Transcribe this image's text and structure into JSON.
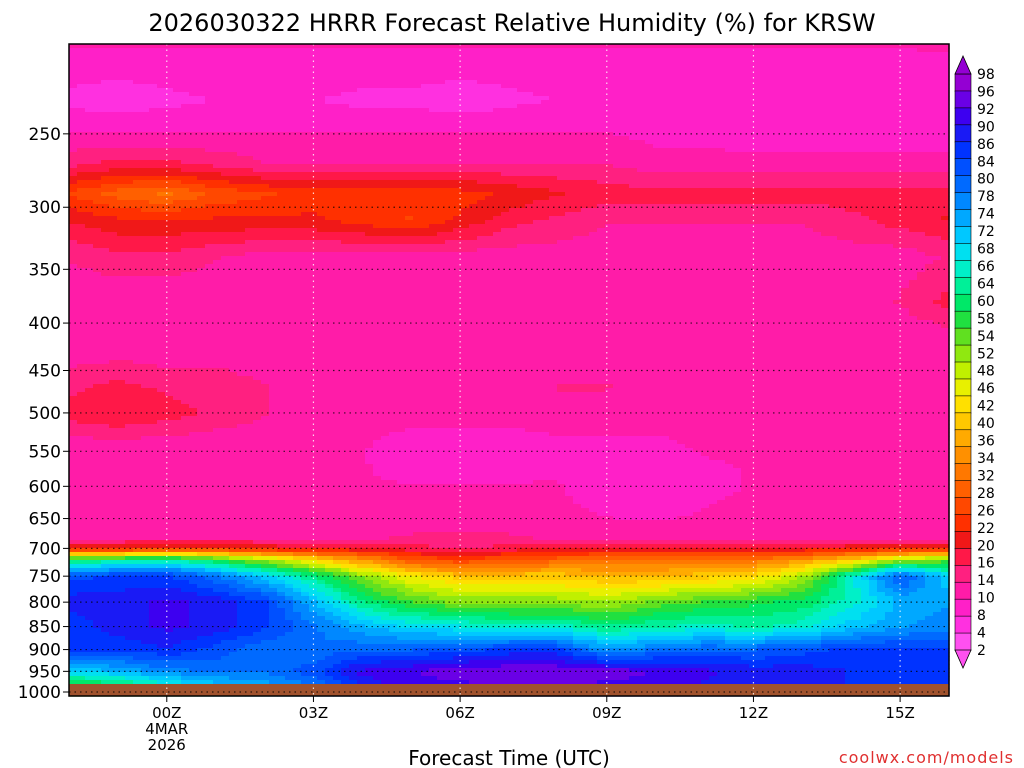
{
  "chart_data": {
    "type": "heatmap",
    "title": "2026030322 HRRR Forecast Relative Humidity (%) for KRSW",
    "xlabel": "Forecast Time (UTC)",
    "ylabel": "",
    "credit": "coolwx.com/models",
    "x_axis": {
      "range_hours": [
        -2.0,
        16.0
      ],
      "ticks": [
        {
          "hour": 0,
          "label": "00Z",
          "sub1": "4MAR",
          "sub2": "2026"
        },
        {
          "hour": 3,
          "label": "03Z"
        },
        {
          "hour": 6,
          "label": "06Z"
        },
        {
          "hour": 9,
          "label": "09Z"
        },
        {
          "hour": 12,
          "label": "12Z"
        },
        {
          "hour": 15,
          "label": "15Z"
        }
      ]
    },
    "y_axis": {
      "scale": "log-pressure",
      "range": [
        1010,
        200
      ],
      "ticks": [
        250,
        300,
        350,
        400,
        450,
        500,
        550,
        600,
        650,
        700,
        750,
        800,
        850,
        900,
        950,
        1000
      ]
    },
    "colorbar": {
      "labels": [
        "98",
        "96",
        "92",
        "90",
        "86",
        "84",
        "80",
        "78",
        "74",
        "72",
        "68",
        "66",
        "64",
        "60",
        "58",
        "54",
        "52",
        "48",
        "46",
        "42",
        "40",
        "36",
        "34",
        "32",
        "28",
        "26",
        "22",
        "20",
        "16",
        "14",
        "10",
        "8",
        "4",
        "2"
      ],
      "colors": [
        "#9400d3",
        "#6a00e6",
        "#3d00f0",
        "#1a1af5",
        "#0033ff",
        "#0050ff",
        "#006aff",
        "#0088ff",
        "#00a8ff",
        "#00c8ff",
        "#00e0f0",
        "#00f0c8",
        "#00f098",
        "#00e868",
        "#20e040",
        "#60e020",
        "#90e810",
        "#c0f000",
        "#e8f000",
        "#ffe000",
        "#ffc800",
        "#ffaa00",
        "#ff9000",
        "#ff7800",
        "#ff6000",
        "#ff4800",
        "#ff3000",
        "#f01818",
        "#ff1848",
        "#ff2080",
        "#ff1ca8",
        "#ff20c8",
        "#ff30e0",
        "#ff50f0"
      ]
    },
    "surface_color": "#a0522d",
    "profiles": {
      "hours": [
        -2,
        -1,
        0,
        1,
        2,
        3,
        4,
        5,
        6,
        7,
        8,
        9,
        10,
        11,
        12,
        13,
        14,
        15,
        16
      ],
      "levels_hpa": [
        {
          "p": 1000,
          "rh": [
            50,
            52,
            60,
            68,
            72,
            78,
            88,
            92,
            92,
            94,
            94,
            92,
            92,
            90,
            90,
            90,
            88,
            86,
            86
          ]
        },
        {
          "p": 950,
          "rh": [
            70,
            74,
            78,
            80,
            80,
            84,
            92,
            94,
            96,
            97,
            97,
            96,
            94,
            92,
            90,
            90,
            88,
            88,
            88
          ]
        },
        {
          "p": 900,
          "rh": [
            86,
            86,
            88,
            84,
            80,
            80,
            82,
            82,
            84,
            86,
            86,
            76,
            80,
            82,
            82,
            84,
            86,
            86,
            86
          ]
        },
        {
          "p": 850,
          "rh": [
            86,
            90,
            92,
            90,
            86,
            80,
            74,
            70,
            68,
            66,
            66,
            62,
            64,
            66,
            64,
            66,
            72,
            76,
            78
          ]
        },
        {
          "p": 800,
          "rh": [
            90,
            90,
            92,
            90,
            86,
            74,
            62,
            56,
            52,
            52,
            52,
            50,
            54,
            56,
            58,
            60,
            66,
            74,
            76
          ]
        },
        {
          "p": 750,
          "rh": [
            84,
            86,
            86,
            80,
            72,
            62,
            52,
            44,
            40,
            40,
            40,
            38,
            38,
            40,
            42,
            50,
            66,
            84,
            70
          ]
        },
        {
          "p": 720,
          "rh": [
            60,
            62,
            64,
            58,
            50,
            42,
            34,
            26,
            24,
            26,
            28,
            30,
            30,
            30,
            30,
            34,
            40,
            50,
            54
          ]
        },
        {
          "p": 700,
          "rh": [
            20,
            20,
            22,
            22,
            20,
            18,
            18,
            16,
            14,
            16,
            18,
            18,
            18,
            18,
            18,
            18,
            20,
            20,
            20
          ]
        },
        {
          "p": 680,
          "rh": [
            10,
            10,
            10,
            10,
            10,
            10,
            10,
            12,
            12,
            12,
            10,
            10,
            10,
            10,
            10,
            10,
            10,
            10,
            10
          ]
        },
        {
          "p": 600,
          "rh": [
            9,
            9,
            9,
            9,
            9,
            9,
            9,
            9,
            9,
            9,
            9,
            7,
            6,
            8,
            9,
            9,
            9,
            9,
            9
          ]
        },
        {
          "p": 550,
          "rh": [
            9,
            9,
            9,
            9,
            9,
            9,
            9,
            7,
            7,
            7,
            8,
            8,
            8,
            9,
            9,
            9,
            9,
            9,
            9
          ]
        },
        {
          "p": 500,
          "rh": [
            16,
            18,
            16,
            14,
            12,
            10,
            10,
            10,
            10,
            10,
            10,
            10,
            10,
            10,
            10,
            10,
            10,
            10,
            10
          ]
        },
        {
          "p": 470,
          "rh": [
            14,
            16,
            14,
            14,
            12,
            10,
            10,
            10,
            10,
            10,
            12,
            12,
            10,
            10,
            10,
            10,
            10,
            10,
            10
          ]
        },
        {
          "p": 420,
          "rh": [
            9,
            9,
            9,
            9,
            9,
            9,
            9,
            9,
            9,
            9,
            9,
            9,
            9,
            9,
            9,
            9,
            9,
            9,
            9
          ]
        },
        {
          "p": 380,
          "rh": [
            9,
            9,
            9,
            9,
            9,
            9,
            9,
            9,
            9,
            9,
            9,
            9,
            9,
            9,
            9,
            9,
            10,
            12,
            16
          ]
        },
        {
          "p": 340,
          "rh": [
            12,
            14,
            14,
            12,
            10,
            10,
            10,
            10,
            10,
            10,
            10,
            10,
            10,
            10,
            10,
            10,
            10,
            10,
            12
          ]
        },
        {
          "p": 310,
          "rh": [
            18,
            20,
            20,
            20,
            20,
            20,
            22,
            24,
            20,
            16,
            14,
            12,
            12,
            12,
            12,
            12,
            14,
            16,
            18
          ]
        },
        {
          "p": 290,
          "rh": [
            24,
            28,
            30,
            26,
            24,
            22,
            22,
            22,
            22,
            20,
            18,
            16,
            16,
            16,
            16,
            16,
            16,
            16,
            16
          ]
        },
        {
          "p": 270,
          "rh": [
            14,
            16,
            16,
            14,
            12,
            12,
            12,
            12,
            12,
            12,
            12,
            12,
            10,
            10,
            10,
            10,
            10,
            10,
            10
          ]
        },
        {
          "p": 250,
          "rh": [
            9,
            9,
            9,
            9,
            9,
            9,
            9,
            9,
            9,
            9,
            9,
            9,
            8,
            8,
            7,
            7,
            7,
            7,
            7
          ]
        },
        {
          "p": 230,
          "rh": [
            5,
            4,
            5,
            6,
            7,
            6,
            5,
            5,
            4,
            5,
            6,
            6,
            6,
            7,
            7,
            7,
            7,
            7,
            8
          ]
        },
        {
          "p": 200,
          "rh": [
            9,
            9,
            9,
            9,
            9,
            9,
            9,
            9,
            9,
            9,
            9,
            9,
            9,
            9,
            9,
            9,
            9,
            9,
            9
          ]
        }
      ]
    }
  }
}
